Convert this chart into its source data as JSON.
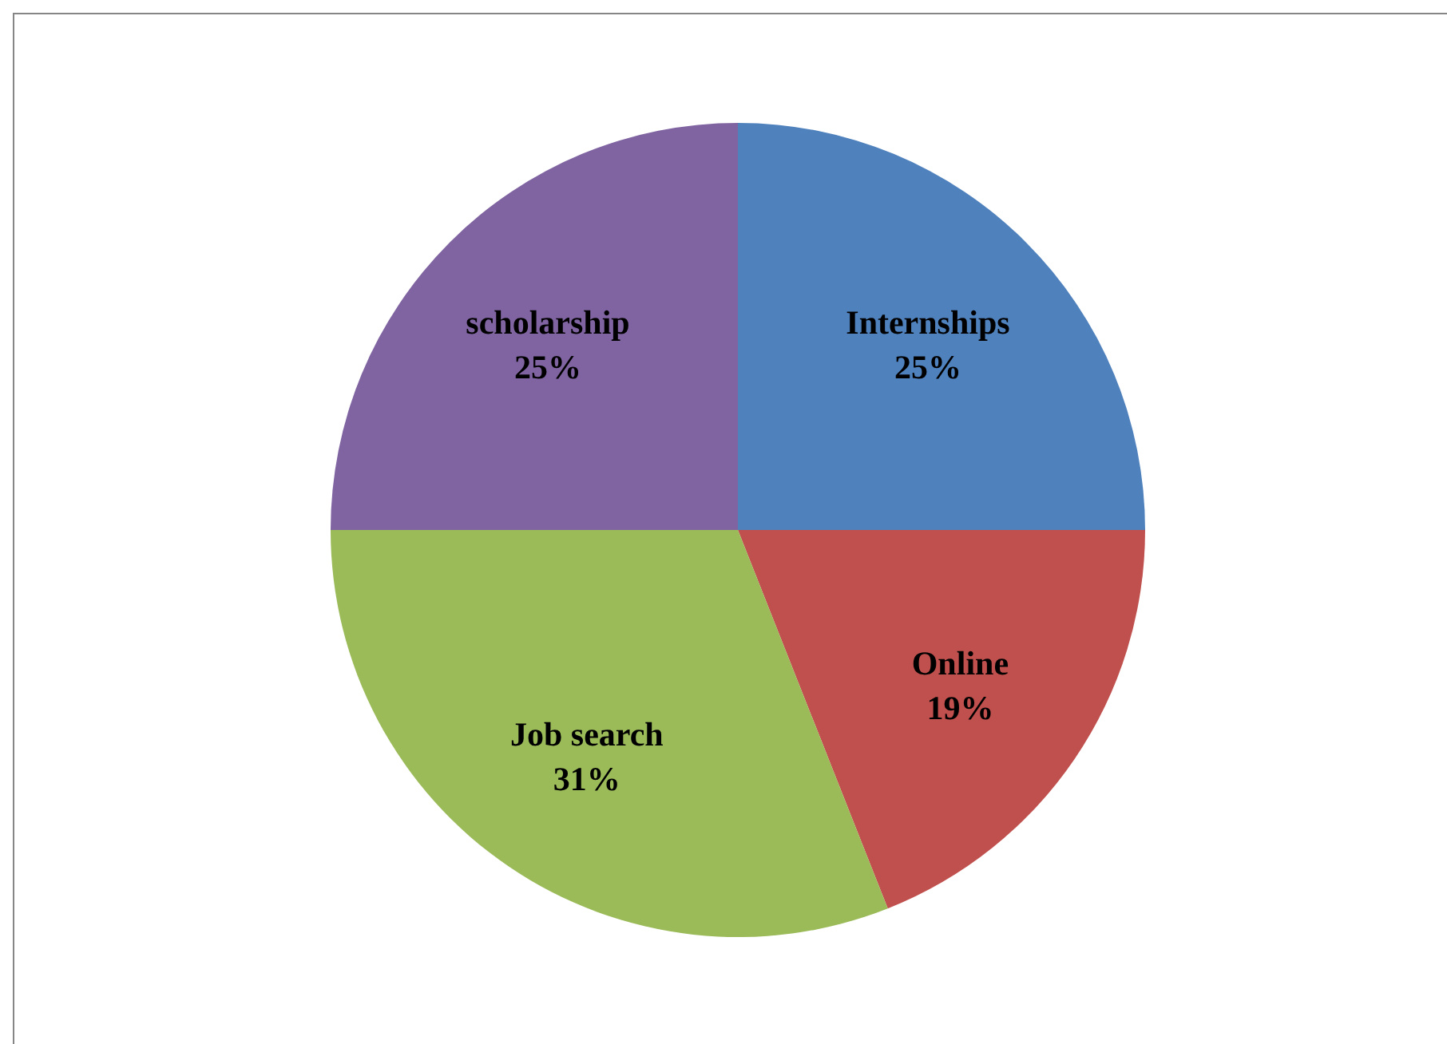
{
  "chart_data": {
    "type": "pie",
    "categories": [
      "Internships",
      "Online",
      "Job search",
      "scholarship"
    ],
    "values": [
      25,
      19,
      31,
      25
    ],
    "colors": [
      "#4f81bd",
      "#c0504d",
      "#9bbb59",
      "#8064a2"
    ],
    "value_labels": [
      "25%",
      "19%",
      "31%",
      "25%"
    ],
    "legend": false
  }
}
